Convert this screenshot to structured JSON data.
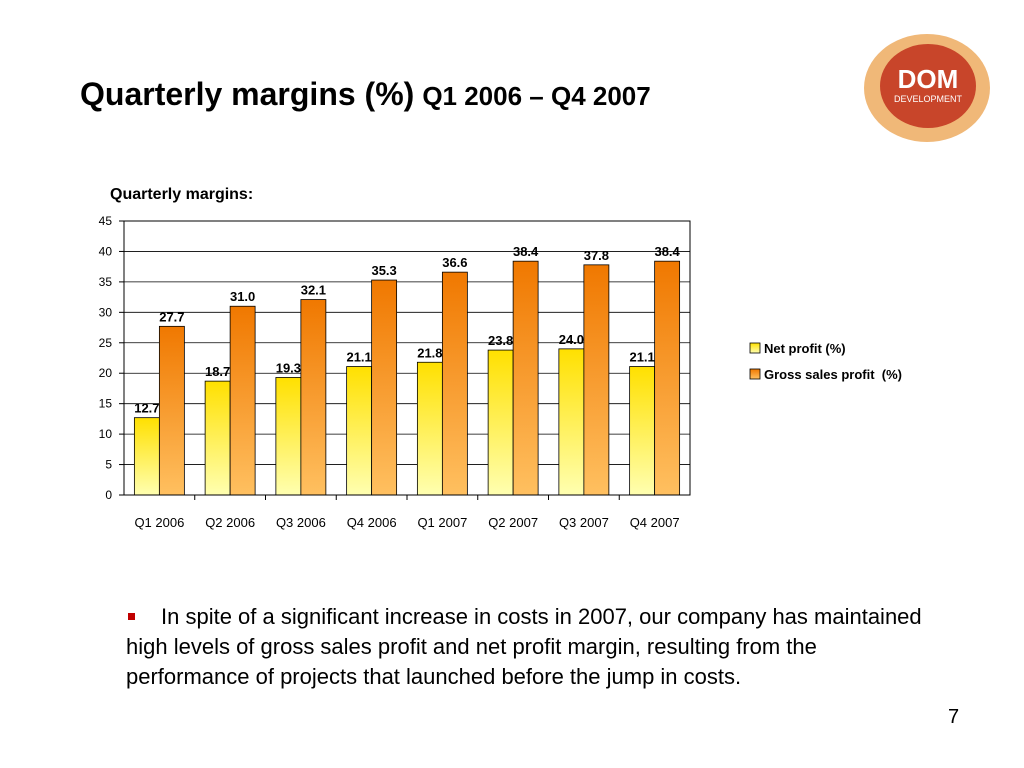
{
  "slide": {
    "title_main": "Quarterly margins (%)",
    "title_sub": "Q1 2006 – Q4 2007",
    "bullet_text": "In spite of a significant increase in costs in 2007, our company has maintained high levels of gross sales profit and net profit margin, resulting from the performance of projects that launched before the jump in costs.",
    "page_number": "7"
  },
  "logo": {
    "text_main": "DOM",
    "text_sub": "DEVELOPMENT",
    "colors": {
      "outer": "#f0b878",
      "inner": "#c8452a",
      "text": "#ffffff"
    }
  },
  "chart_data": {
    "type": "bar",
    "title": "Quarterly margins:",
    "categories": [
      "Q1 2006",
      "Q2 2006",
      "Q3 2006",
      "Q4 2006",
      "Q1 2007",
      "Q2 2007",
      "Q3 2007",
      "Q4 2007"
    ],
    "series": [
      {
        "name": "Net profit (%)",
        "values": [
          12.7,
          18.7,
          19.3,
          21.1,
          21.8,
          23.8,
          24.0,
          21.1
        ],
        "labels": [
          "12.7",
          "18.7",
          "19.3",
          "21.1",
          "21.8",
          "23.8",
          "24.0",
          "21.1"
        ],
        "color_top": "#ffe000",
        "color_bottom": "#ffffb0"
      },
      {
        "name": "Gross sales profit  (%)",
        "values": [
          27.7,
          31.0,
          32.1,
          35.3,
          36.6,
          38.4,
          37.8,
          38.4
        ],
        "labels": [
          "27.7",
          "31.0",
          "32.1",
          "35.3",
          "36.6",
          "38.4",
          "37.8",
          "38.4"
        ],
        "color_top": "#f07800",
        "color_bottom": "#ffc060"
      }
    ],
    "ylim": [
      0,
      45
    ],
    "yticks": [
      "0",
      "5",
      "10",
      "15",
      "20",
      "25",
      "30",
      "35",
      "40",
      "45"
    ],
    "grid": true,
    "legend": "right"
  }
}
